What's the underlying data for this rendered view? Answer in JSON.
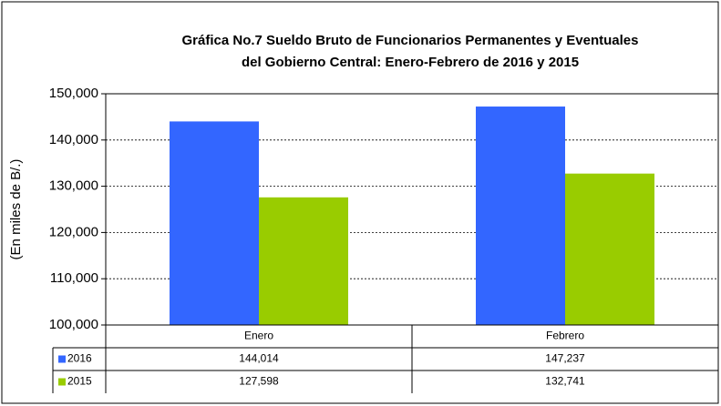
{
  "chart_data": {
    "type": "bar",
    "title": "Gráfica No.7 Sueldo Bruto de Funcionarios Permanentes y Eventuales",
    "subtitle": "del Gobierno Central: Enero-Febrero de 2016 y 2015",
    "y_label": "(En miles de B/.)",
    "categories": [
      "Enero",
      "Febrero"
    ],
    "series": [
      {
        "name": "2016",
        "color": "#3366ff",
        "values": [
          144014,
          147237
        ],
        "value_labels": [
          "144,014",
          "147,237"
        ]
      },
      {
        "name": "2015",
        "color": "#99cc00",
        "values": [
          127598,
          132741
        ],
        "value_labels": [
          "127,598",
          "132,741"
        ]
      }
    ],
    "ylim": [
      100000,
      150000
    ],
    "yticks": [
      {
        "value": 100000,
        "label": "100,000"
      },
      {
        "value": 110000,
        "label": "110,000"
      },
      {
        "value": 120000,
        "label": "120,000"
      },
      {
        "value": 130000,
        "label": "130,000"
      },
      {
        "value": 140000,
        "label": "140,000"
      },
      {
        "value": 150000,
        "label": "150,000"
      }
    ],
    "grid": true
  }
}
